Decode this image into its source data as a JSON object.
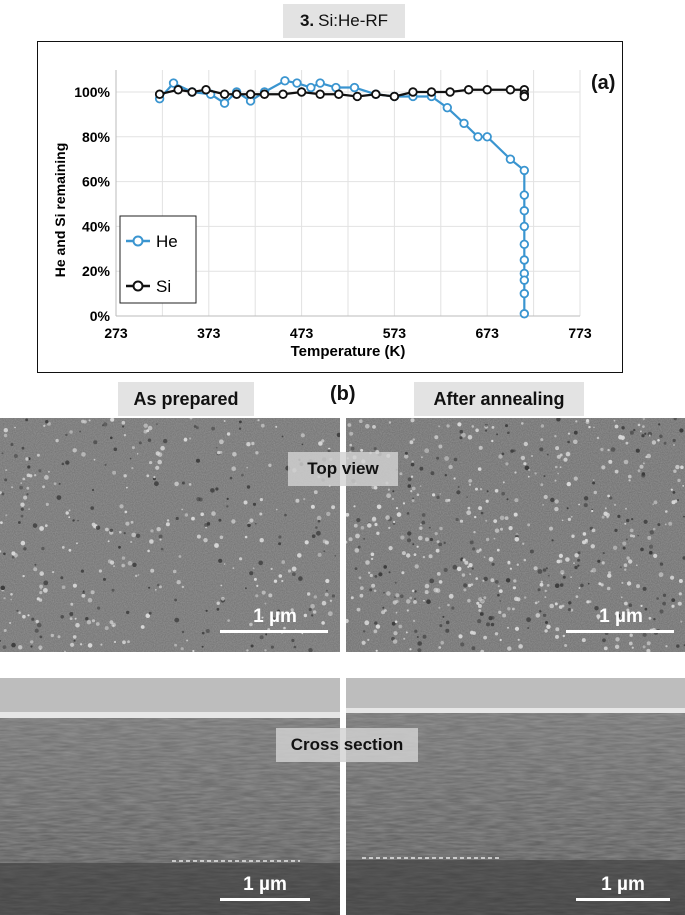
{
  "figure": {
    "title_num": "3.",
    "title_text": "Si:He-RF",
    "panel_a_label": "(a)",
    "panel_b_label": "(b)"
  },
  "chart_data": {
    "type": "line",
    "xlabel": "Temperature (K)",
    "ylabel": "He and Si  remaining",
    "xlim": [
      273,
      773
    ],
    "ylim": [
      0,
      100
    ],
    "xticks": [
      273,
      373,
      473,
      573,
      673,
      773
    ],
    "yticks": [
      0,
      20,
      40,
      60,
      80,
      100
    ],
    "ytick_labels": [
      "0%",
      "20%",
      "40%",
      "60%",
      "80%",
      "100%"
    ],
    "grid": true,
    "legend_position": "bottom-left",
    "series": [
      {
        "name": "He",
        "color": "#3a95d0",
        "x": [
          320,
          335,
          355,
          375,
          390,
          403,
          418,
          433,
          455,
          468,
          483,
          493,
          510,
          530,
          553,
          573,
          593,
          613,
          630,
          648,
          663,
          673,
          698,
          713,
          713,
          713,
          713,
          713,
          713,
          713,
          713,
          713,
          713
        ],
        "y": [
          97,
          104,
          100,
          99,
          95,
          100,
          96,
          100,
          105,
          104,
          102,
          104,
          102,
          102,
          99,
          98,
          98,
          98,
          93,
          86,
          80,
          80,
          70,
          65,
          54,
          47,
          40,
          32,
          25,
          19,
          16,
          10,
          1
        ]
      },
      {
        "name": "Si",
        "color": "#111111",
        "x": [
          320,
          340,
          355,
          370,
          390,
          403,
          418,
          433,
          453,
          473,
          493,
          513,
          533,
          553,
          573,
          593,
          613,
          633,
          653,
          673,
          698,
          713,
          713,
          713
        ],
        "y": [
          99,
          101,
          100,
          101,
          99,
          99,
          99,
          99,
          99,
          100,
          99,
          99,
          98,
          99,
          98,
          100,
          100,
          100,
          101,
          101,
          101,
          101,
          99,
          98
        ]
      }
    ]
  },
  "sem": {
    "col1_label": "As prepared",
    "col2_label": "After annealing",
    "top_view_label": "Top view",
    "cross_section_label": "Cross section",
    "scale_label": "1 µm"
  }
}
